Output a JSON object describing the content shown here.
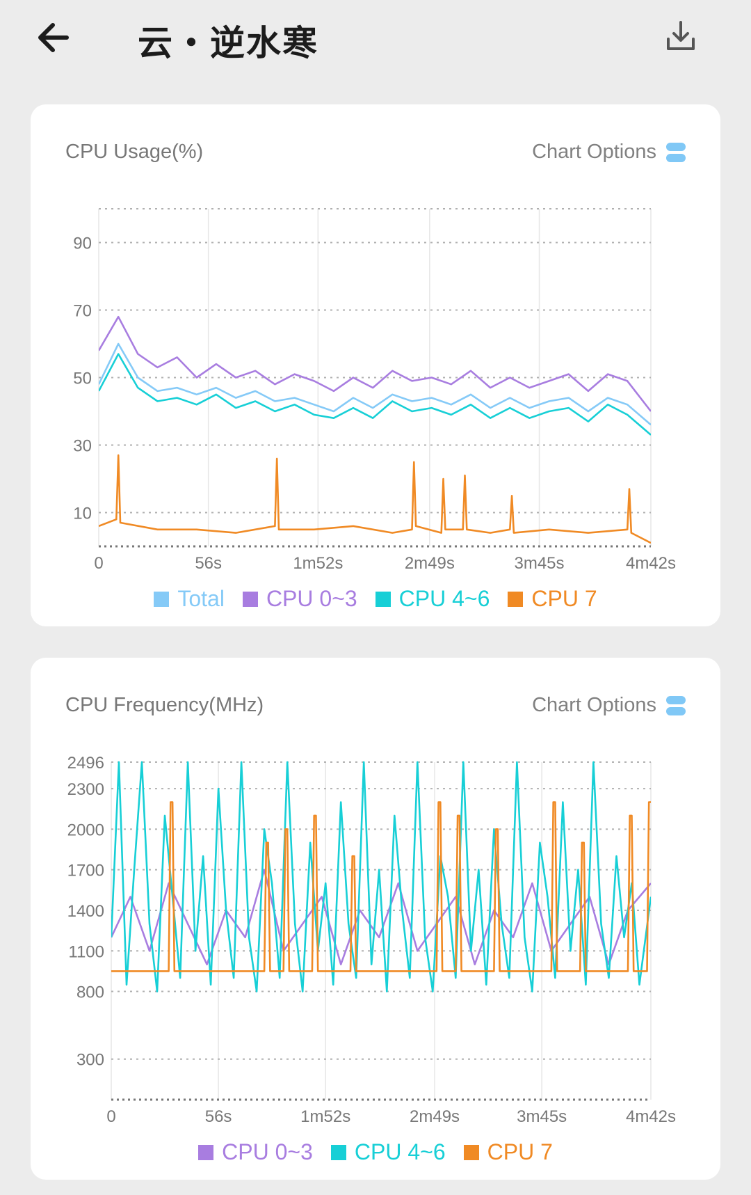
{
  "header": {
    "title": "云・逆水寒"
  },
  "colors": {
    "total": "#85caf7",
    "cpu_0_3": "#a87de0",
    "cpu_4_6": "#17cfd6",
    "cpu_7": "#f08a24"
  },
  "icons": {
    "back": "arrow-left-icon",
    "download": "download-icon",
    "options": "options-icon"
  },
  "usage_card": {
    "title": "CPU Usage(%)",
    "options_label": "Chart Options",
    "legend": [
      "Total",
      "CPU 0~3",
      "CPU 4~6",
      "CPU 7"
    ]
  },
  "freq_card": {
    "title": "CPU Frequency(MHz)",
    "options_label": "Chart Options",
    "legend": [
      "CPU 0~3",
      "CPU 4~6",
      "CPU 7"
    ]
  },
  "chart_data": [
    {
      "type": "line",
      "title": "CPU Usage(%)",
      "xlabel": "",
      "ylabel": "",
      "x_tick_labels": [
        "0",
        "56s",
        "1m52s",
        "2m49s",
        "3m45s",
        "4m42s"
      ],
      "x_tick_seconds": [
        0,
        56,
        112,
        169,
        225,
        282
      ],
      "y_tick_labels": [
        "10",
        "30",
        "50",
        "70",
        "90"
      ],
      "ylim": [
        0,
        100
      ],
      "grid": true,
      "legend_position": "bottom",
      "series": [
        {
          "name": "Total",
          "color": "#85caf7",
          "x": [
            0,
            10,
            20,
            30,
            40,
            50,
            60,
            70,
            80,
            90,
            100,
            110,
            120,
            130,
            140,
            150,
            160,
            170,
            180,
            190,
            200,
            210,
            220,
            230,
            240,
            250,
            260,
            270,
            282
          ],
          "values": [
            48,
            60,
            50,
            46,
            47,
            45,
            47,
            44,
            46,
            43,
            44,
            42,
            40,
            44,
            41,
            45,
            43,
            44,
            42,
            45,
            41,
            44,
            41,
            43,
            44,
            40,
            44,
            42,
            36
          ]
        },
        {
          "name": "CPU 0~3",
          "color": "#a87de0",
          "x": [
            0,
            10,
            20,
            30,
            40,
            50,
            60,
            70,
            80,
            90,
            100,
            110,
            120,
            130,
            140,
            150,
            160,
            170,
            180,
            190,
            200,
            210,
            220,
            230,
            240,
            250,
            260,
            270,
            282
          ],
          "values": [
            58,
            68,
            57,
            53,
            56,
            50,
            54,
            50,
            52,
            48,
            51,
            49,
            46,
            50,
            47,
            52,
            49,
            50,
            48,
            52,
            47,
            50,
            47,
            49,
            51,
            46,
            51,
            49,
            40
          ]
        },
        {
          "name": "CPU 4~6",
          "color": "#17cfd6",
          "x": [
            0,
            10,
            20,
            30,
            40,
            50,
            60,
            70,
            80,
            90,
            100,
            110,
            120,
            130,
            140,
            150,
            160,
            170,
            180,
            190,
            200,
            210,
            220,
            230,
            240,
            250,
            260,
            270,
            282
          ],
          "values": [
            46,
            57,
            47,
            43,
            44,
            42,
            45,
            41,
            43,
            40,
            42,
            39,
            38,
            41,
            38,
            43,
            40,
            41,
            39,
            42,
            38,
            41,
            38,
            40,
            41,
            37,
            42,
            39,
            33
          ]
        },
        {
          "name": "CPU 7",
          "color": "#f08a24",
          "x": [
            0,
            9,
            10,
            11,
            30,
            50,
            70,
            90,
            91,
            92,
            110,
            130,
            150,
            160,
            161,
            162,
            175,
            176,
            177,
            186,
            187,
            188,
            200,
            210,
            211,
            212,
            230,
            250,
            270,
            271,
            272,
            282
          ],
          "values": [
            6,
            8,
            27,
            7,
            5,
            5,
            4,
            6,
            26,
            5,
            5,
            6,
            4,
            5,
            25,
            6,
            4,
            20,
            5,
            5,
            21,
            5,
            4,
            5,
            15,
            4,
            5,
            4,
            5,
            17,
            4,
            1
          ]
        }
      ]
    },
    {
      "type": "line",
      "title": "CPU Frequency(MHz)",
      "xlabel": "",
      "ylabel": "",
      "x_tick_labels": [
        "0",
        "56s",
        "1m52s",
        "2m49s",
        "3m45s",
        "4m42s"
      ],
      "x_tick_seconds": [
        0,
        56,
        112,
        169,
        225,
        282
      ],
      "y_tick_labels": [
        "300",
        "800",
        "1100",
        "1400",
        "1700",
        "2000",
        "2300",
        "2496"
      ],
      "ylim": [
        0,
        2496
      ],
      "grid": true,
      "legend_position": "bottom",
      "series": [
        {
          "name": "CPU 0~3",
          "color": "#a87de0",
          "x": [
            0,
            10,
            20,
            30,
            40,
            50,
            60,
            70,
            80,
            90,
            100,
            110,
            120,
            130,
            140,
            150,
            160,
            170,
            180,
            190,
            200,
            210,
            220,
            230,
            240,
            250,
            260,
            270,
            282
          ],
          "values": [
            1200,
            1500,
            1100,
            1600,
            1300,
            1000,
            1400,
            1200,
            1700,
            1100,
            1300,
            1500,
            1000,
            1400,
            1200,
            1600,
            1100,
            1300,
            1500,
            1000,
            1400,
            1200,
            1600,
            1100,
            1300,
            1500,
            1000,
            1400,
            1600
          ]
        },
        {
          "name": "CPU 4~6",
          "color": "#17cfd6",
          "x": [
            0,
            4,
            8,
            12,
            16,
            20,
            24,
            28,
            32,
            36,
            40,
            44,
            48,
            52,
            56,
            60,
            64,
            68,
            72,
            76,
            80,
            84,
            88,
            92,
            96,
            100,
            104,
            108,
            112,
            116,
            120,
            124,
            128,
            132,
            136,
            140,
            144,
            148,
            152,
            156,
            160,
            164,
            168,
            172,
            176,
            180,
            184,
            188,
            192,
            196,
            200,
            204,
            208,
            212,
            216,
            220,
            224,
            228,
            232,
            236,
            240,
            244,
            248,
            252,
            256,
            260,
            264,
            268,
            272,
            276,
            282
          ],
          "values": [
            1200,
            2496,
            850,
            1700,
            2496,
            1300,
            800,
            2100,
            1500,
            900,
            2496,
            1100,
            1800,
            850,
            2300,
            1400,
            900,
            2496,
            1200,
            800,
            2000,
            1600,
            900,
            2496,
            1300,
            800,
            1900,
            1100,
            1600,
            850,
            2200,
            1300,
            900,
            2496,
            1000,
            1700,
            800,
            2100,
            1400,
            900,
            2496,
            1200,
            800,
            1800,
            1500,
            900,
            2496,
            1100,
            1700,
            850,
            2000,
            1300,
            900,
            2496,
            1200,
            800,
            1900,
            1500,
            900,
            2200,
            1100,
            1700,
            850,
            2496,
            1300,
            900,
            1800,
            1200,
            1600,
            850,
            1500
          ]
        },
        {
          "name": "CPU 7",
          "color": "#f08a24",
          "x": [
            0,
            30,
            31,
            32,
            33,
            80,
            81,
            82,
            83,
            90,
            91,
            92,
            93,
            105,
            106,
            107,
            108,
            125,
            126,
            127,
            128,
            170,
            171,
            172,
            173,
            180,
            181,
            182,
            183,
            200,
            201,
            202,
            203,
            230,
            231,
            232,
            233,
            245,
            246,
            247,
            248,
            270,
            271,
            272,
            273,
            280,
            281,
            282
          ],
          "values": [
            950,
            950,
            2200,
            2200,
            950,
            950,
            1900,
            1900,
            950,
            950,
            2000,
            2000,
            950,
            950,
            2100,
            2100,
            950,
            950,
            1800,
            1800,
            950,
            950,
            2200,
            2200,
            950,
            950,
            2100,
            2100,
            950,
            950,
            2000,
            2000,
            950,
            950,
            2200,
            2200,
            950,
            950,
            1900,
            1900,
            950,
            950,
            2100,
            2100,
            950,
            950,
            2200,
            2200
          ]
        }
      ]
    }
  ]
}
